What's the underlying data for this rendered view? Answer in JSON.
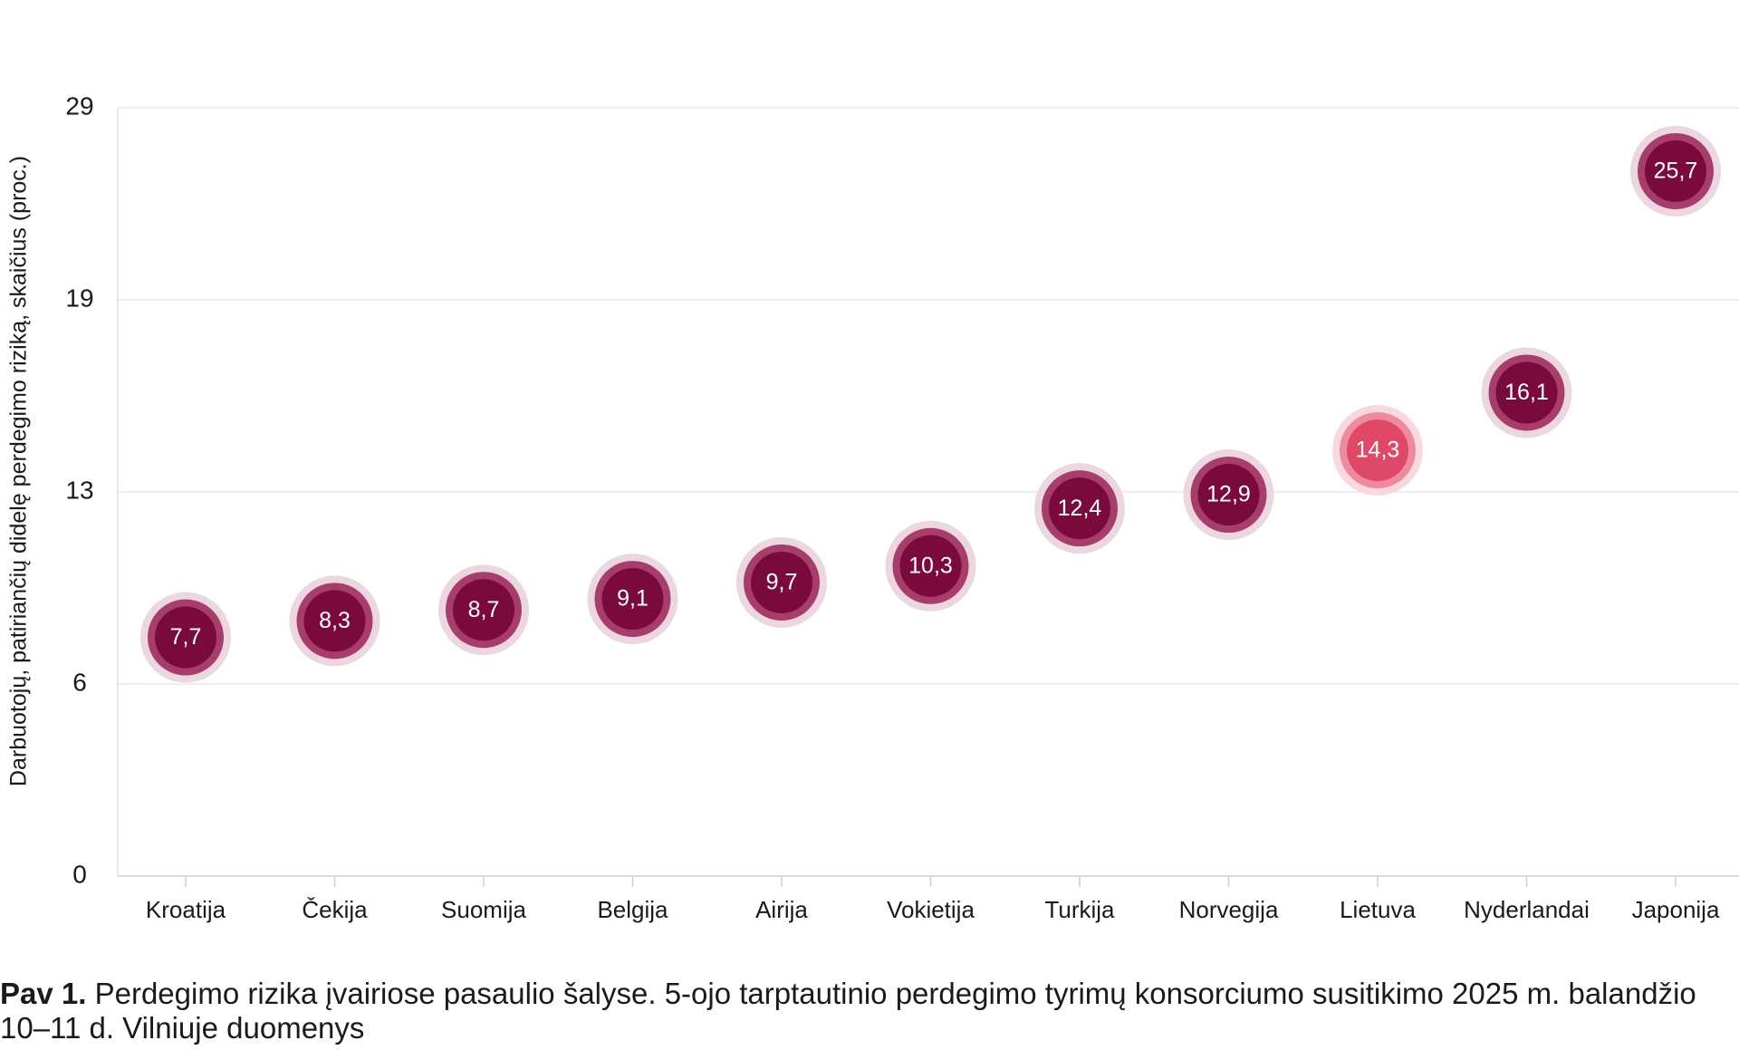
{
  "chart_data": {
    "type": "scatter",
    "ylabel": "Darbuotojų, patiriančių didelę perdegimo riziką, skaičius (proc.)",
    "xlabel": "",
    "yticks": [
      0,
      6,
      13,
      19,
      29
    ],
    "ylim": [
      0,
      29
    ],
    "grid": true,
    "categories": [
      "Kroatija",
      "Čekija",
      "Suomija",
      "Belgija",
      "Airija",
      "Vokietija",
      "Turkija",
      "Norvegija",
      "Lietuva",
      "Nyderlandai",
      "Japonija"
    ],
    "values": [
      7.7,
      8.3,
      8.7,
      9.1,
      9.7,
      10.3,
      12.4,
      12.9,
      14.3,
      16.1,
      25.7
    ],
    "value_labels": [
      "7,7",
      "8,3",
      "8,7",
      "9,1",
      "9,7",
      "10,3",
      "12,4",
      "12,9",
      "14,3",
      "16,1",
      "25,7"
    ],
    "highlight_index": 8,
    "colors": {
      "point": "#7a0a3c",
      "point_ring": "#a63d6a",
      "point_halo": "#ecd6e0",
      "highlight": "#e04868",
      "highlight_ring": "#ee8a9e",
      "highlight_halo": "#f9d9df",
      "grid": "#e8e8e8"
    }
  },
  "caption": {
    "bold": "Pav 1.",
    "text": " Perdegimo rizika įvairiose pasaulio šalyse. 5-ojo tarptautinio perdegimo tyrimų konsorciumo susitikimo 2025 m. balandžio 10–11 d. Vilniuje duomenys"
  }
}
